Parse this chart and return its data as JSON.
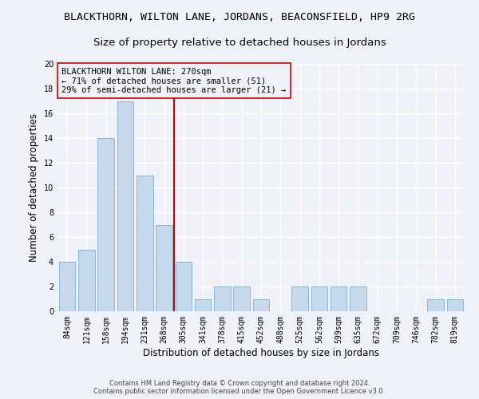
{
  "title": "BLACKTHORN, WILTON LANE, JORDANS, BEACONSFIELD, HP9 2RG",
  "subtitle": "Size of property relative to detached houses in Jordans",
  "xlabel": "Distribution of detached houses by size in Jordans",
  "ylabel": "Number of detached properties",
  "categories": [
    "84sqm",
    "121sqm",
    "158sqm",
    "194sqm",
    "231sqm",
    "268sqm",
    "305sqm",
    "341sqm",
    "378sqm",
    "415sqm",
    "452sqm",
    "488sqm",
    "525sqm",
    "562sqm",
    "599sqm",
    "635sqm",
    "672sqm",
    "709sqm",
    "746sqm",
    "782sqm",
    "819sqm"
  ],
  "values": [
    4,
    5,
    14,
    17,
    11,
    7,
    4,
    1,
    2,
    2,
    1,
    0,
    2,
    2,
    2,
    2,
    0,
    0,
    0,
    1,
    1
  ],
  "bar_color": "#c5d8ec",
  "bar_edge_color": "#7bafd4",
  "ref_line_x": 5.5,
  "ref_line_color": "#cc0000",
  "annotation_title": "BLACKTHORN WILTON LANE: 270sqm",
  "annotation_line1": "← 71% of detached houses are smaller (51)",
  "annotation_line2": "29% of semi-detached houses are larger (21) →",
  "annotation_box_color": "#cc0000",
  "footer_line1": "Contains HM Land Registry data © Crown copyright and database right 2024.",
  "footer_line2": "Contains public sector information licensed under the Open Government Licence v3.0.",
  "ylim": [
    0,
    20
  ],
  "yticks": [
    0,
    2,
    4,
    6,
    8,
    10,
    12,
    14,
    16,
    18,
    20
  ],
  "background_color": "#eef2f8",
  "grid_color": "#ffffff",
  "title_fontsize": 9.5,
  "subtitle_fontsize": 9.5,
  "ylabel_fontsize": 8.5,
  "xlabel_fontsize": 8.5,
  "tick_fontsize": 7,
  "annotation_fontsize": 7.5,
  "footer_fontsize": 6
}
